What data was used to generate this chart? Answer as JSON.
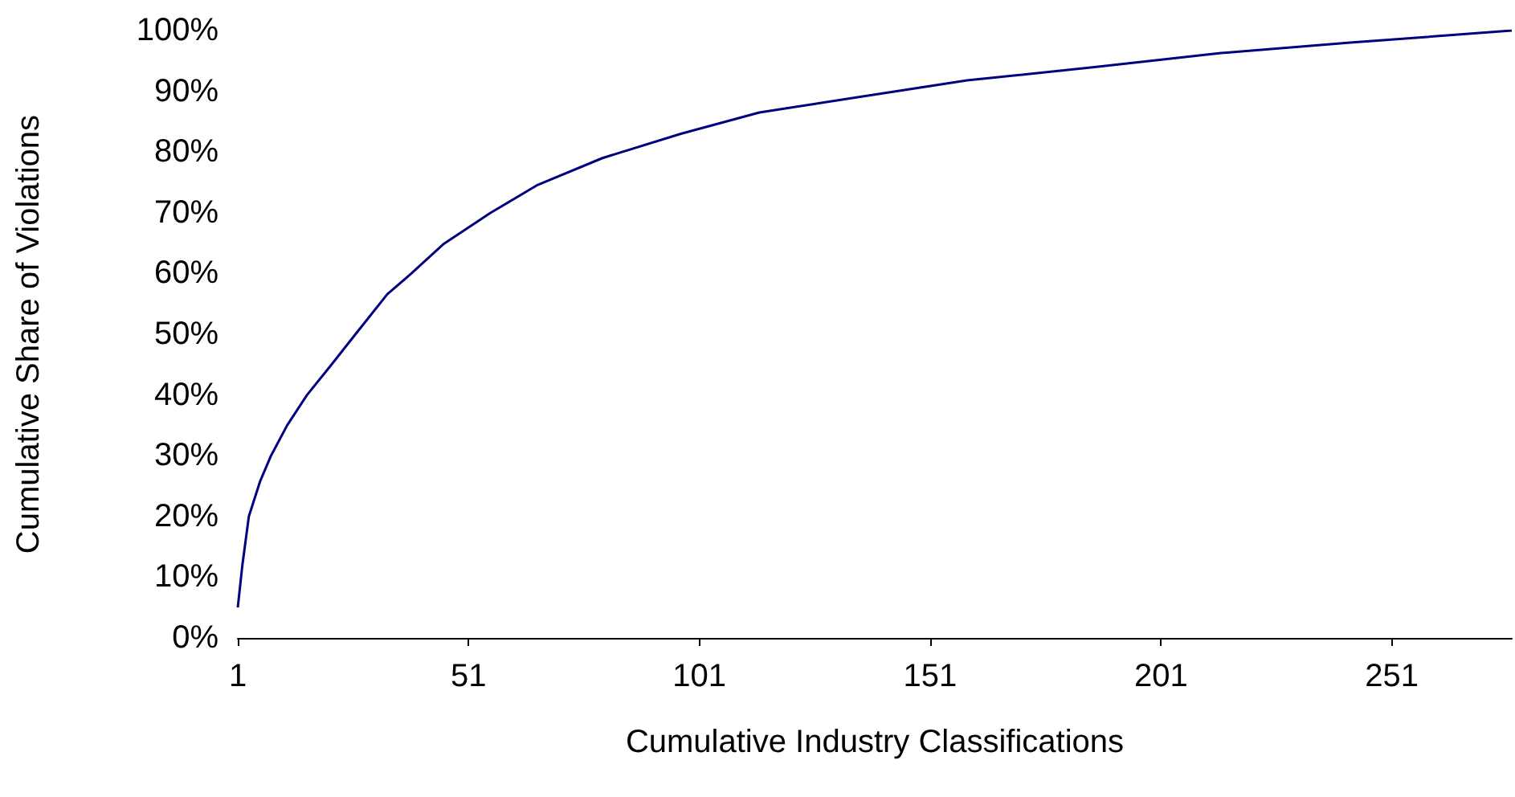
{
  "chart_data": {
    "type": "line",
    "xlabel": "Cumulative Industry Classifications",
    "ylabel": "Cumulative Share of Violations",
    "x": [
      1,
      2,
      3.4,
      5.8,
      8.2,
      11.7,
      16,
      21,
      26.5,
      33.4,
      38.6,
      45.5,
      55.8,
      66,
      80,
      97,
      114,
      135,
      159,
      187,
      214,
      242,
      277
    ],
    "series": [
      {
        "color": "#000080",
        "values": [
          5,
          12,
          20,
          25.7,
          30,
          35,
          40,
          44.7,
          50,
          56.6,
          60,
          64.8,
          70,
          74.6,
          79,
          83,
          86.5,
          89,
          91.8,
          94,
          96.3,
          98,
          100
        ]
      }
    ],
    "xlim": [
      1,
      277
    ],
    "xticks": [
      1,
      51,
      101,
      151,
      201,
      251
    ],
    "ylim": [
      0,
      100
    ],
    "yticks": [
      {
        "value": 0,
        "label": "0%"
      },
      {
        "value": 10,
        "label": "10%"
      },
      {
        "value": 20,
        "label": "20%"
      },
      {
        "value": 30,
        "label": "30%"
      },
      {
        "value": 40,
        "label": "40%"
      },
      {
        "value": 50,
        "label": "50%"
      },
      {
        "value": 60,
        "label": "60%"
      },
      {
        "value": 70,
        "label": "70%"
      },
      {
        "value": 80,
        "label": "80%"
      },
      {
        "value": 90,
        "label": "90%"
      },
      {
        "value": 100,
        "label": "100%"
      }
    ],
    "grid": false,
    "marker": "none",
    "line_style": "solid"
  }
}
